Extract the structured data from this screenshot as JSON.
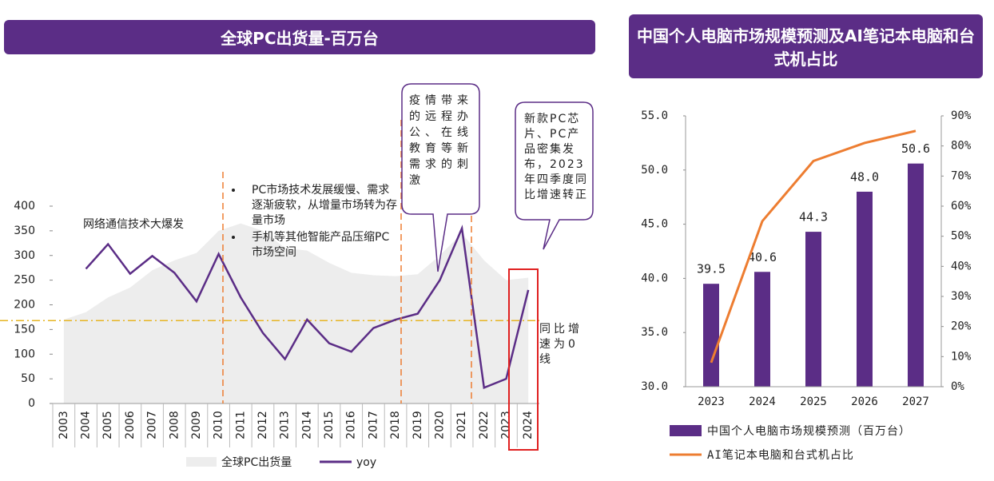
{
  "chart_data": [
    {
      "type": "line",
      "title": "全球PC出货量-百万台",
      "categories": [
        "2003",
        "2004",
        "2005",
        "2006",
        "2007",
        "2008",
        "2009",
        "2010",
        "2011",
        "2012",
        "2013",
        "2014",
        "2015",
        "2016",
        "2017",
        "2018",
        "2019",
        "2020",
        "2021",
        "2022",
        "2023",
        "2024"
      ],
      "series": [
        {
          "name": "全球PC出货量",
          "type": "area",
          "color": "#ededed",
          "values": [
            170,
            185,
            215,
            235,
            270,
            290,
            305,
            350,
            365,
            350,
            315,
            310,
            285,
            265,
            260,
            258,
            262,
            300,
            345,
            290,
            250,
            255
          ]
        },
        {
          "name": "yoy",
          "type": "line",
          "color": "#5b2d86",
          "values": [
            null,
            273,
            323,
            263,
            299,
            265,
            207,
            303,
            215,
            143,
            90,
            170,
            122,
            105,
            153,
            170,
            182,
            250,
            355,
            32,
            50,
            230
          ]
        }
      ],
      "ylim": [
        0,
        400
      ],
      "yticks": [
        0,
        50,
        100,
        150,
        200,
        250,
        300,
        350,
        400
      ],
      "reference_line": {
        "value": 168,
        "label": "同比增速为0线",
        "color": "#e6b422"
      },
      "annotations": [
        "网络通信技术大爆发",
        "PC市场技术发展缓慢、需求逐渐疲软，从增量市场转为存量市场",
        "手机等其他智能产品压缩PC市场空间",
        "疫情带来的远程办公、在线教育等新需求的刺激",
        "新款PC芯片、PC产品密集发布，2023年四季度同比增速转正"
      ]
    },
    {
      "type": "bar",
      "title": "中国个人电脑市场规模预测及AI笔记本电脑和台式机占比",
      "categories": [
        "2023",
        "2024",
        "2025",
        "2026",
        "2027"
      ],
      "series": [
        {
          "name": "中国个人电脑市场规模预测（百万台）",
          "type": "bar",
          "color": "#5b2d86",
          "values": [
            39.5,
            40.6,
            44.3,
            48.0,
            50.6
          ],
          "value_labels": [
            "39.5",
            "40.6",
            "44.3",
            "48.0",
            "50.6"
          ]
        },
        {
          "name": "AI笔记本电脑和台式机占比",
          "type": "line",
          "axis": "y2",
          "color": "#ed7d31",
          "values": [
            8,
            55,
            75,
            81,
            85
          ]
        }
      ],
      "ylim": [
        30,
        55
      ],
      "yticks": [
        {
          "value": 30,
          "label": "30.0"
        },
        {
          "value": 35,
          "label": "35.0"
        },
        {
          "value": 40,
          "label": "40.0"
        },
        {
          "value": 45,
          "label": "45.0"
        },
        {
          "value": 50,
          "label": "50.0"
        },
        {
          "value": 55,
          "label": "55.0"
        }
      ],
      "y2lim": [
        0,
        90
      ],
      "y2ticks": [
        {
          "value": 0,
          "label": "0%"
        },
        {
          "value": 10,
          "label": "10%"
        },
        {
          "value": 20,
          "label": "20%"
        },
        {
          "value": 30,
          "label": "30%"
        },
        {
          "value": 40,
          "label": "40%"
        },
        {
          "value": 50,
          "label": "50%"
        },
        {
          "value": 60,
          "label": "60%"
        },
        {
          "value": 70,
          "label": "70%"
        },
        {
          "value": 80,
          "label": "80%"
        },
        {
          "value": 90,
          "label": "90%"
        }
      ]
    }
  ]
}
